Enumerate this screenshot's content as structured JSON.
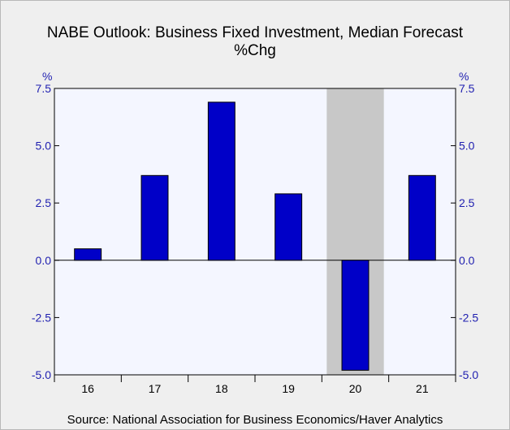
{
  "header": {
    "title_line1": "NABE Outlook: Business Fixed Investment, Median Forecast",
    "title_line2": "%Chg"
  },
  "axes": {
    "left_unit": "%",
    "right_unit": "%"
  },
  "footer": {
    "source": "Source:  National Association for Business Economics/Haver Analytics"
  },
  "colors": {
    "bar": "#0000c8",
    "plot_bg": "#f4f6ff",
    "recession_shade": "#c8c8c8",
    "axis_labels": "#1f1fb0"
  },
  "chart_data": {
    "type": "bar",
    "title": "NABE Outlook: Business Fixed Investment, Median Forecast",
    "subtitle": "%Chg",
    "categories": [
      "16",
      "17",
      "18",
      "19",
      "20",
      "21"
    ],
    "values": [
      0.5,
      3.7,
      6.9,
      2.9,
      -4.8,
      3.7
    ],
    "ylim": [
      -5.0,
      7.5
    ],
    "yticks": [
      7.5,
      5.0,
      2.5,
      0.0,
      -2.5,
      -5.0
    ],
    "ytick_labels": [
      "7.5",
      "5.0",
      "2.5",
      "0.0",
      "-2.5",
      "-5.0"
    ],
    "ylabel": "%",
    "shaded_category": "20",
    "grid": false
  }
}
